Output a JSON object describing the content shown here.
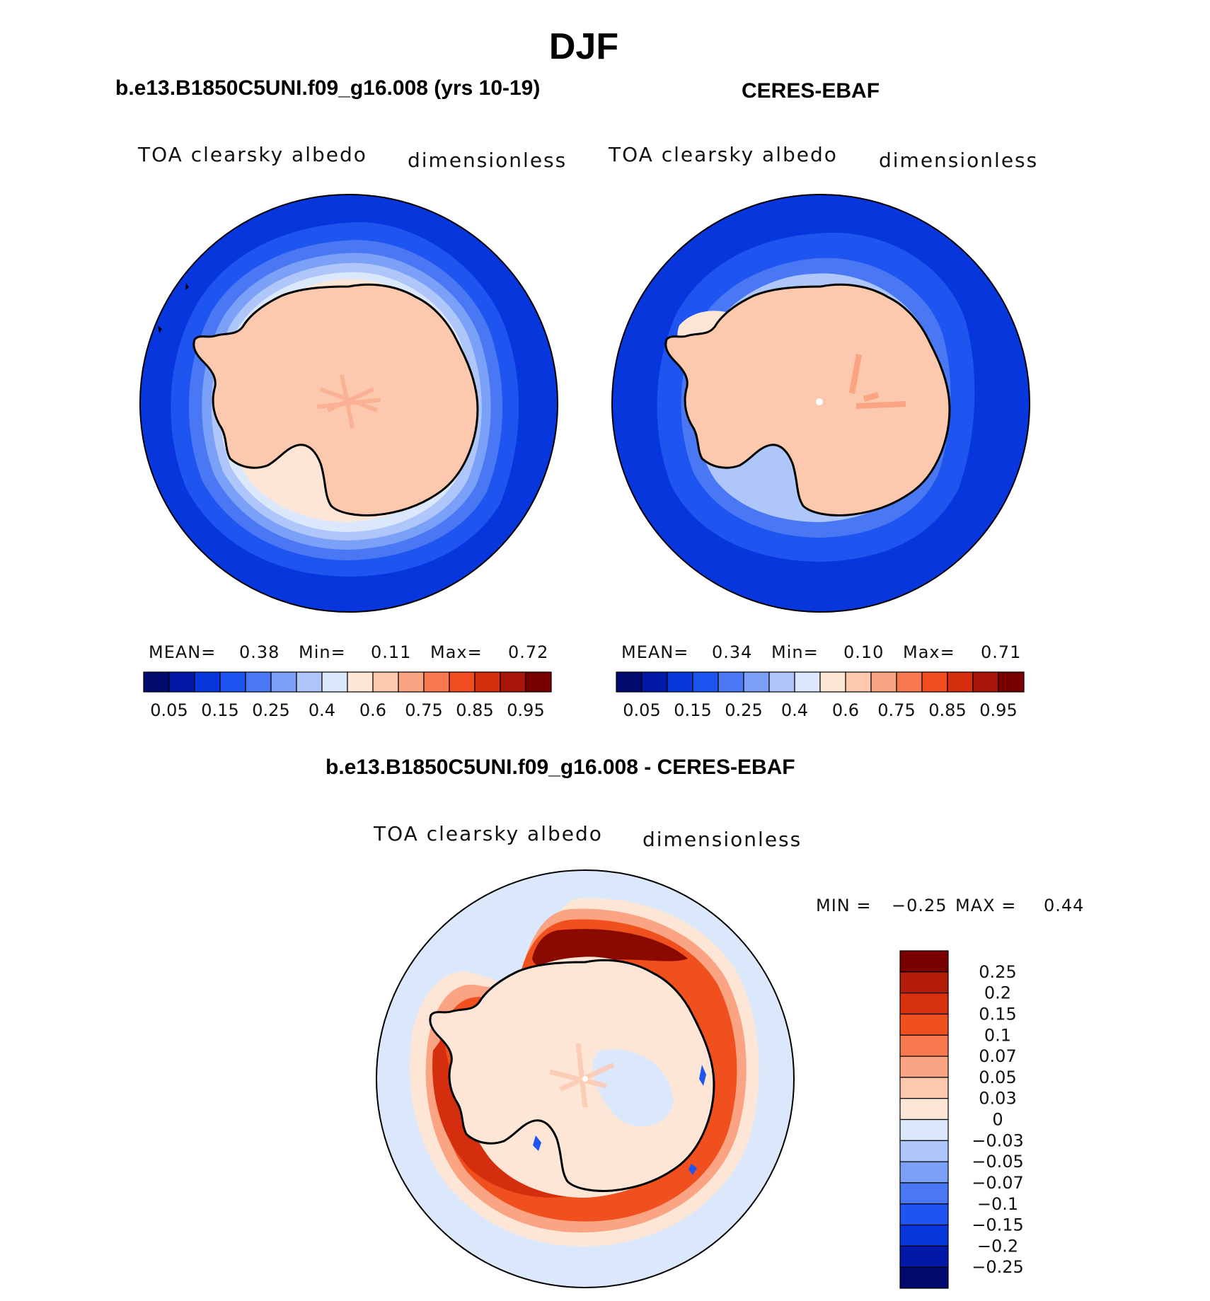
{
  "season": "DJF",
  "panels": [
    {
      "title": "b.e13.B1850C5UNI.f09_g16.008 (yrs 10-19)",
      "variable": "TOA clearsky albedo",
      "units": "dimensionless",
      "stats": {
        "mean_label": "MEAN=",
        "mean": "0.38",
        "min_label": "Min=",
        "min": "0.11",
        "max_label": "Max=",
        "max": "0.72"
      }
    },
    {
      "title": "CERES-EBAF",
      "variable": "TOA clearsky albedo",
      "units": "dimensionless",
      "stats": {
        "mean_label": "MEAN=",
        "mean": "0.34",
        "min_label": "Min=",
        "min": "0.10",
        "max_label": "Max=",
        "max": "0.71"
      }
    },
    {
      "title": "b.e13.B1850C5UNI.f09_g16.008 - CERES-EBAF",
      "variable": "TOA clearsky albedo",
      "units": "dimensionless",
      "stats": {
        "min_label": "MIN =",
        "min": "−0.25",
        "max_label": "MAX =",
        "max": "0.44"
      }
    }
  ],
  "colorbar_abs": {
    "colors": [
      "#020a6e",
      "#0218a8",
      "#0636dc",
      "#1e54f0",
      "#4a78f5",
      "#7aa0f7",
      "#aec6fa",
      "#dbe8fc",
      "#fde6d6",
      "#fcc8ae",
      "#fba483",
      "#f8784f",
      "#f04c1f",
      "#d52e0e",
      "#a8150a",
      "#7a0000"
    ],
    "labels": [
      "0.05",
      "0.15",
      "0.25",
      "0.4",
      "0.6",
      "0.75",
      "0.85",
      "0.95"
    ]
  },
  "colorbar_diff": {
    "colors": [
      "#7a0000",
      "#b31c0a",
      "#d8330e",
      "#f0501e",
      "#f8784f",
      "#fba483",
      "#fcc8ae",
      "#fde6d6",
      "#dbe8fc",
      "#aec6fa",
      "#7aa0f7",
      "#4a78f5",
      "#1e54f0",
      "#0636dc",
      "#0218a8",
      "#020a6e"
    ],
    "labels": [
      "0.25",
      "0.2",
      "0.15",
      "0.1",
      "0.07",
      "0.05",
      "0.03",
      "0",
      "−0.03",
      "−0.05",
      "−0.07",
      "−0.1",
      "−0.15",
      "−0.2",
      "−0.25"
    ]
  },
  "map_colors": {
    "deep_blue": "#0636dc",
    "mid_blue": "#1e54f0",
    "light_blue": "#7aa0f7",
    "pale_blue": "#dbe8fc",
    "cream": "#fde6d6",
    "peach": "#fcc8ae",
    "salmon": "#fba483",
    "orange": "#f0501e",
    "red": "#d52e0e",
    "dark_red": "#8a0a00"
  }
}
